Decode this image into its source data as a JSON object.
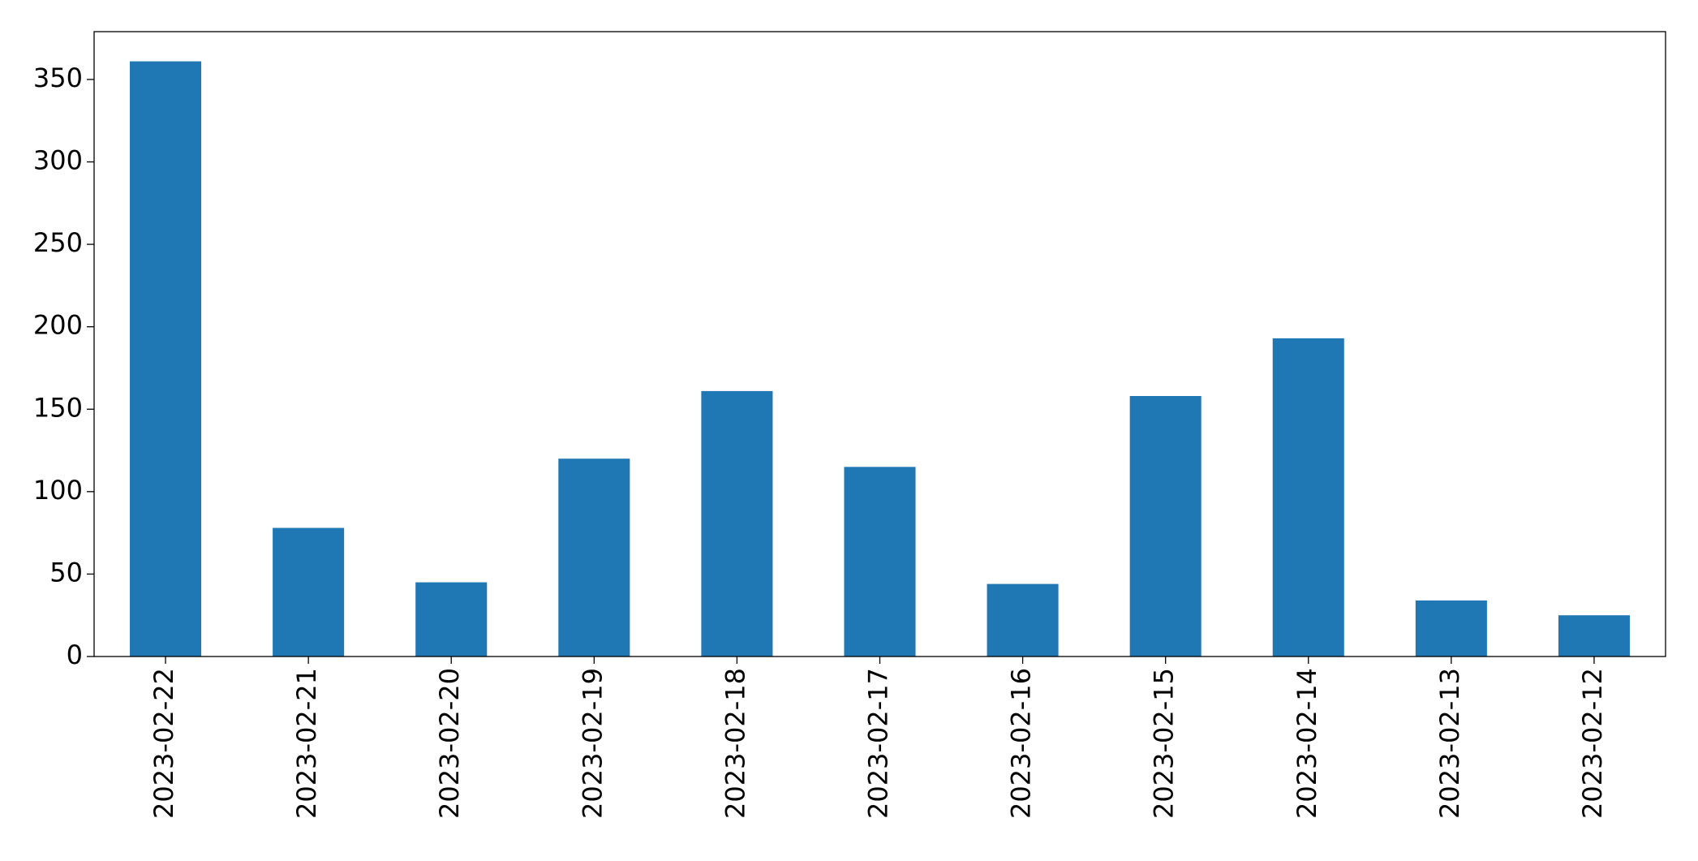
{
  "chart_data": {
    "type": "bar",
    "categories": [
      "2023-02-22",
      "2023-02-21",
      "2023-02-20",
      "2023-02-19",
      "2023-02-18",
      "2023-02-17",
      "2023-02-16",
      "2023-02-15",
      "2023-02-14",
      "2023-02-13",
      "2023-02-12"
    ],
    "values": [
      361,
      78,
      45,
      120,
      161,
      115,
      44,
      158,
      193,
      34,
      25
    ],
    "color": "#1f77b4",
    "ylim": [
      0,
      379
    ],
    "yticks": [
      0,
      50,
      100,
      150,
      200,
      250,
      300,
      350
    ],
    "grid": false
  }
}
